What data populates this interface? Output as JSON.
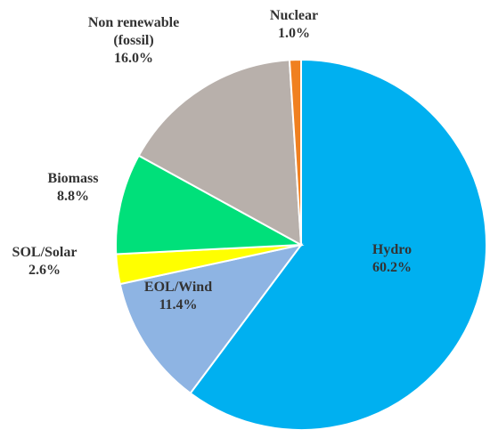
{
  "chart_data": {
    "type": "pie",
    "title": "",
    "slices": [
      {
        "name": "Hydro",
        "value": 60.2,
        "display": "60.2%",
        "color": "#00B0F0",
        "label_color": "#333333"
      },
      {
        "name": "EOL/Wind",
        "value": 11.4,
        "display": "11.4%",
        "color": "#8EB4E3",
        "label_color": "#333333"
      },
      {
        "name": "SOL/Solar",
        "value": 2.6,
        "display": "2.6%",
        "color": "#FFFF00",
        "label_color": "#333333"
      },
      {
        "name": "Biomass",
        "value": 8.8,
        "display": "8.8%",
        "color": "#00E07A",
        "label_color": "#333333"
      },
      {
        "name": "Non renewable\n(fossil)",
        "value": 16.0,
        "display": "16.0%",
        "color": "#B8B0AB",
        "label_color": "#333333"
      },
      {
        "name": "Nuclear",
        "value": 1.0,
        "display": "1.0%",
        "color": "#F08020",
        "label_color": "#333333"
      }
    ]
  }
}
